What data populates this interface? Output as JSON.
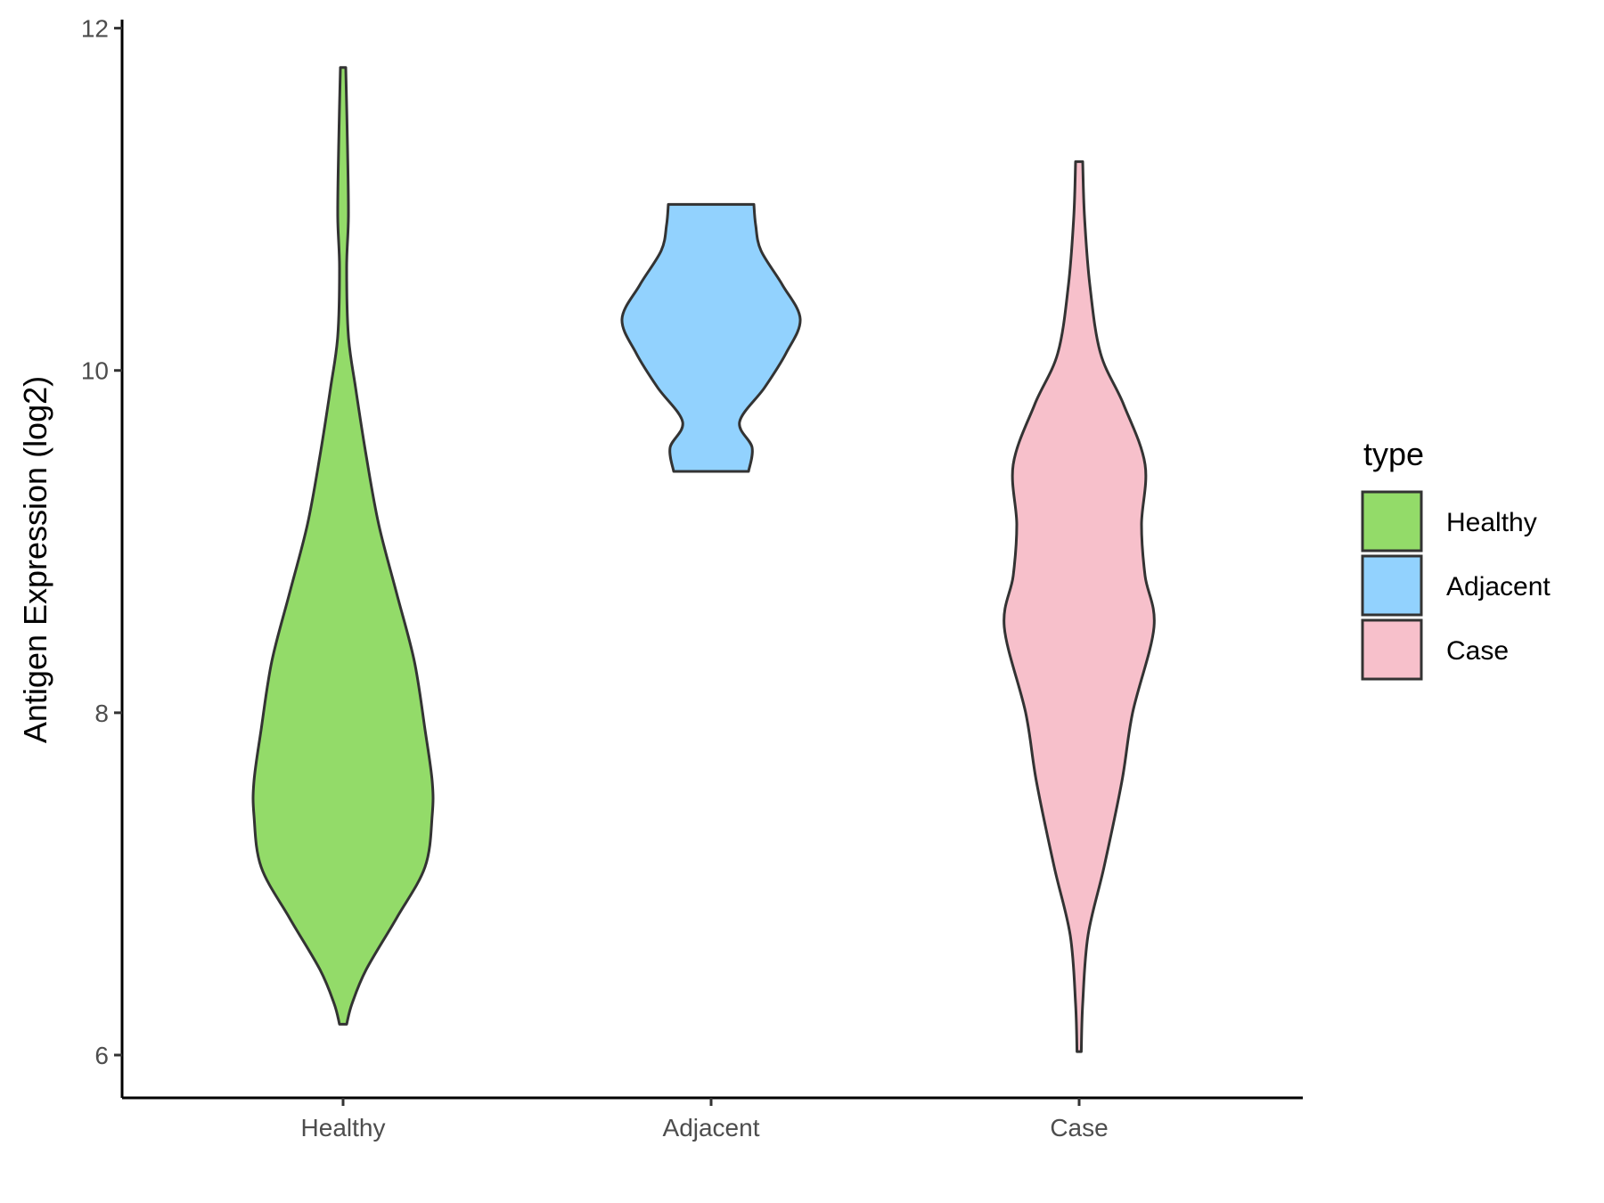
{
  "chart_data": {
    "type": "violin",
    "title": "",
    "xlabel": "",
    "ylabel": "Antigen Expression (log2)",
    "ylim": [
      5.75,
      12.05
    ],
    "yticks": [
      6,
      8,
      10,
      12
    ],
    "grid": false,
    "legend": {
      "title": "type",
      "placement": "right",
      "entries": [
        "Healthy",
        "Adjacent",
        "Case"
      ]
    },
    "categories": [
      "Healthy",
      "Adjacent",
      "Case"
    ],
    "series": [
      {
        "name": "Healthy",
        "color": "#93db69",
        "min": 6.18,
        "max": 11.77,
        "profile": [
          [
            6.18,
            0.02
          ],
          [
            6.3,
            0.05
          ],
          [
            6.5,
            0.13
          ],
          [
            6.8,
            0.3
          ],
          [
            7.1,
            0.46
          ],
          [
            7.4,
            0.5
          ],
          [
            7.6,
            0.5
          ],
          [
            7.9,
            0.46
          ],
          [
            8.3,
            0.4
          ],
          [
            8.7,
            0.3
          ],
          [
            9.1,
            0.2
          ],
          [
            9.5,
            0.13
          ],
          [
            9.9,
            0.07
          ],
          [
            10.2,
            0.03
          ],
          [
            10.6,
            0.02
          ],
          [
            10.9,
            0.03
          ],
          [
            11.3,
            0.025
          ],
          [
            11.77,
            0.015
          ]
        ]
      },
      {
        "name": "Adjacent",
        "color": "#92d2fe",
        "min": 9.41,
        "max": 10.97,
        "profile": [
          [
            9.41,
            0.21
          ],
          [
            9.55,
            0.23
          ],
          [
            9.7,
            0.16
          ],
          [
            9.9,
            0.3
          ],
          [
            10.1,
            0.42
          ],
          [
            10.3,
            0.5
          ],
          [
            10.5,
            0.4
          ],
          [
            10.7,
            0.28
          ],
          [
            10.85,
            0.25
          ],
          [
            10.97,
            0.24
          ]
        ]
      },
      {
        "name": "Case",
        "color": "#f7c0cb",
        "min": 6.02,
        "max": 11.22,
        "profile": [
          [
            6.02,
            0.012
          ],
          [
            6.3,
            0.02
          ],
          [
            6.7,
            0.05
          ],
          [
            7.1,
            0.14
          ],
          [
            7.6,
            0.24
          ],
          [
            8.0,
            0.3
          ],
          [
            8.5,
            0.42
          ],
          [
            8.8,
            0.37
          ],
          [
            9.1,
            0.35
          ],
          [
            9.45,
            0.37
          ],
          [
            9.8,
            0.25
          ],
          [
            10.1,
            0.12
          ],
          [
            10.5,
            0.06
          ],
          [
            10.9,
            0.03
          ],
          [
            11.22,
            0.02
          ]
        ]
      }
    ]
  }
}
